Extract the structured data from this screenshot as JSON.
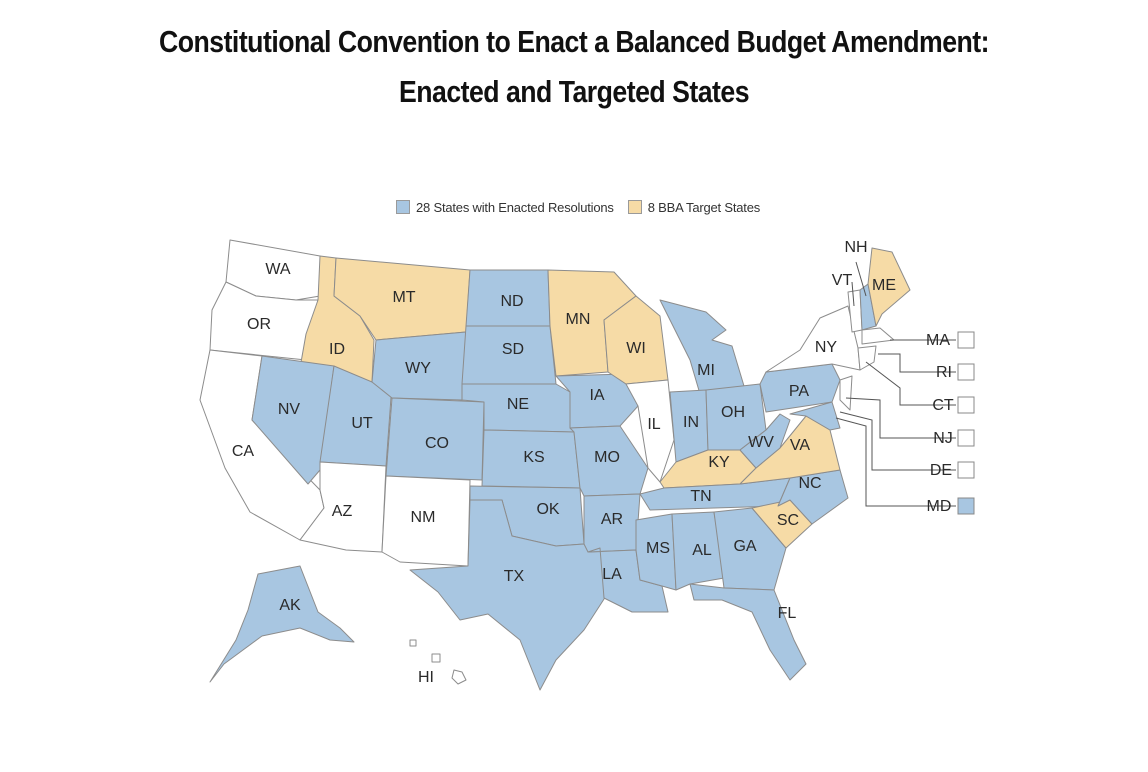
{
  "title_line1": "Constitutional Convention to Enact a Balanced Budget Amendment:",
  "title_line2": "Enacted and Targeted States",
  "colors": {
    "enacted": "#a8c6e1",
    "target": "#f6dba6",
    "none": "#ffffff",
    "border": "#8c8c8c"
  },
  "legend": [
    {
      "label": "28 States with Enacted Resolutions",
      "status": "enacted"
    },
    {
      "label": "8 BBA Target States",
      "status": "target"
    }
  ],
  "states": [
    {
      "abbr": "WA",
      "status": "none"
    },
    {
      "abbr": "OR",
      "status": "none"
    },
    {
      "abbr": "CA",
      "status": "none"
    },
    {
      "abbr": "ID",
      "status": "target"
    },
    {
      "abbr": "MT",
      "status": "target"
    },
    {
      "abbr": "NV",
      "status": "enacted"
    },
    {
      "abbr": "UT",
      "status": "enacted"
    },
    {
      "abbr": "WY",
      "status": "enacted"
    },
    {
      "abbr": "AZ",
      "status": "none"
    },
    {
      "abbr": "CO",
      "status": "enacted"
    },
    {
      "abbr": "NM",
      "status": "none"
    },
    {
      "abbr": "ND",
      "status": "enacted"
    },
    {
      "abbr": "SD",
      "status": "enacted"
    },
    {
      "abbr": "NE",
      "status": "enacted"
    },
    {
      "abbr": "KS",
      "status": "enacted"
    },
    {
      "abbr": "OK",
      "status": "enacted"
    },
    {
      "abbr": "TX",
      "status": "enacted"
    },
    {
      "abbr": "MN",
      "status": "target"
    },
    {
      "abbr": "IA",
      "status": "enacted"
    },
    {
      "abbr": "MO",
      "status": "enacted"
    },
    {
      "abbr": "AR",
      "status": "enacted"
    },
    {
      "abbr": "LA",
      "status": "enacted"
    },
    {
      "abbr": "WI",
      "status": "target"
    },
    {
      "abbr": "IL",
      "status": "none"
    },
    {
      "abbr": "MI",
      "status": "enacted"
    },
    {
      "abbr": "IN",
      "status": "enacted"
    },
    {
      "abbr": "OH",
      "status": "enacted"
    },
    {
      "abbr": "KY",
      "status": "target"
    },
    {
      "abbr": "TN",
      "status": "enacted"
    },
    {
      "abbr": "MS",
      "status": "enacted"
    },
    {
      "abbr": "AL",
      "status": "enacted"
    },
    {
      "abbr": "GA",
      "status": "enacted"
    },
    {
      "abbr": "FL",
      "status": "enacted"
    },
    {
      "abbr": "SC",
      "status": "target"
    },
    {
      "abbr": "NC",
      "status": "enacted"
    },
    {
      "abbr": "VA",
      "status": "target"
    },
    {
      "abbr": "WV",
      "status": "enacted"
    },
    {
      "abbr": "PA",
      "status": "enacted"
    },
    {
      "abbr": "NY",
      "status": "none"
    },
    {
      "abbr": "VT",
      "status": "none"
    },
    {
      "abbr": "NH",
      "status": "enacted"
    },
    {
      "abbr": "ME",
      "status": "target"
    },
    {
      "abbr": "AK",
      "status": "enacted"
    },
    {
      "abbr": "HI",
      "status": "none"
    }
  ],
  "callouts": [
    {
      "abbr": "MA",
      "status": "none"
    },
    {
      "abbr": "RI",
      "status": "none"
    },
    {
      "abbr": "CT",
      "status": "none"
    },
    {
      "abbr": "NJ",
      "status": "none"
    },
    {
      "abbr": "DE",
      "status": "none"
    },
    {
      "abbr": "MD",
      "status": "enacted"
    }
  ]
}
